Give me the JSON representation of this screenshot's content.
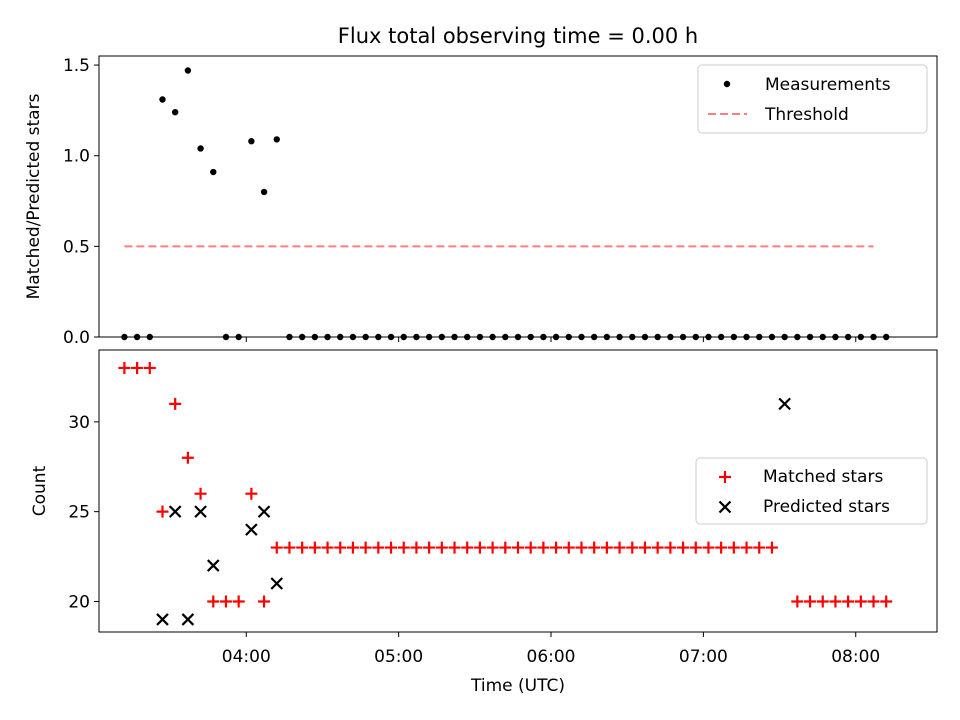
{
  "chart_data": [
    {
      "type": "scatter",
      "title": "Flux total observing time = 0.00 h",
      "xlabel": "",
      "ylabel": "Matched/Predicted stars",
      "xlim": [
        182,
        512
      ],
      "ylim": [
        0,
        1.55
      ],
      "yticks": [
        0.0,
        0.5,
        1.0,
        1.5
      ],
      "ytick_labels": [
        "0.0",
        "0.5",
        "1.0",
        "1.5"
      ],
      "legend": [
        "Measurements",
        "Threshold"
      ],
      "legend_position": "upper right",
      "colors": {
        "measurements": "#000000",
        "threshold": "#ff7f7f"
      },
      "threshold": {
        "y": 0.5,
        "x_range": [
          192,
          487
        ]
      },
      "series": [
        {
          "name": "Measurements",
          "x": [
            192,
            197,
            202,
            207,
            212,
            217,
            222,
            227,
            232,
            237,
            242,
            247,
            252,
            257,
            262,
            267,
            272,
            277,
            282,
            287,
            292,
            297,
            302,
            307,
            312,
            317,
            322,
            327,
            332,
            337,
            342,
            347,
            352,
            357,
            362,
            367,
            372,
            377,
            382,
            387,
            392,
            397,
            402,
            407,
            412,
            417,
            422,
            427,
            432,
            437,
            442,
            447,
            452,
            457,
            462,
            467,
            472,
            477,
            482,
            487,
            492
          ],
          "y": [
            0,
            0,
            0,
            1.31,
            1.24,
            1.47,
            1.04,
            0.91,
            0,
            0,
            1.08,
            0.8,
            1.09,
            0,
            0,
            0,
            0,
            0,
            0,
            0,
            0,
            0,
            0,
            0,
            0,
            0,
            0,
            0,
            0,
            0,
            0,
            0,
            0,
            0,
            0,
            0,
            0,
            0,
            0,
            0,
            0,
            0,
            0,
            0,
            0,
            0,
            0,
            0,
            0,
            0,
            0,
            0,
            0,
            0,
            0,
            0,
            0,
            0,
            0,
            0,
            0
          ]
        }
      ]
    },
    {
      "type": "scatter",
      "title": "",
      "xlabel": "Time (UTC)",
      "ylabel": "Count",
      "xlim": [
        182,
        512
      ],
      "ylim": [
        18.3,
        34.0
      ],
      "yticks": [
        20,
        25,
        30
      ],
      "ytick_labels": [
        "20",
        "25",
        "30"
      ],
      "xticks": [
        180,
        240,
        300,
        360,
        420,
        480
      ],
      "xtick_labels": [
        "03:00",
        "04:00",
        "05:00",
        "06:00",
        "07:00",
        "08:00"
      ],
      "legend": [
        "Matched stars",
        "Predicted stars"
      ],
      "legend_position": "center right",
      "colors": {
        "matched": "#ff0000",
        "predicted": "#000000"
      },
      "series": [
        {
          "name": "Matched stars",
          "x": [
            192,
            197,
            202,
            207,
            212,
            217,
            222,
            227,
            232,
            237,
            242,
            247,
            252,
            257,
            262,
            267,
            272,
            277,
            282,
            287,
            292,
            297,
            302,
            307,
            312,
            317,
            322,
            327,
            332,
            337,
            342,
            347,
            352,
            357,
            362,
            367,
            372,
            377,
            382,
            387,
            392,
            397,
            402,
            407,
            412,
            417,
            422,
            427,
            432,
            437,
            442,
            447,
            457,
            462,
            467,
            472,
            477,
            482,
            487,
            492
          ],
          "y": [
            33,
            33,
            33,
            25,
            31,
            28,
            26,
            20,
            20,
            20,
            26,
            20,
            23,
            23,
            23,
            23,
            23,
            23,
            23,
            23,
            23,
            23,
            23,
            23,
            23,
            23,
            23,
            23,
            23,
            23,
            23,
            23,
            23,
            23,
            23,
            23,
            23,
            23,
            23,
            23,
            23,
            23,
            23,
            23,
            23,
            23,
            23,
            23,
            23,
            23,
            23,
            23,
            20,
            20,
            20,
            20,
            20,
            20,
            20,
            20
          ]
        },
        {
          "name": "Predicted stars",
          "x": [
            207,
            212,
            217,
            222,
            227,
            242,
            247,
            252,
            452
          ],
          "y": [
            19,
            25,
            19,
            25,
            22,
            24,
            25,
            21,
            31
          ]
        }
      ]
    }
  ]
}
